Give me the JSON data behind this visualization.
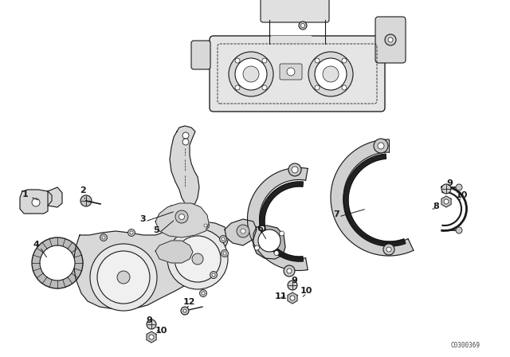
{
  "background_color": "#ffffff",
  "line_color": "#1a1a1a",
  "diagram_code": "C0300369",
  "fig_width": 6.4,
  "fig_height": 4.48,
  "dpi": 100,
  "labels": [
    [
      "1",
      28,
      247
    ],
    [
      "2",
      100,
      242
    ],
    [
      "3",
      175,
      278
    ],
    [
      "4",
      42,
      310
    ],
    [
      "5",
      192,
      292
    ],
    [
      "6",
      322,
      290
    ],
    [
      "7",
      418,
      272
    ],
    [
      "8",
      543,
      262
    ],
    [
      "9",
      560,
      233
    ],
    [
      "10",
      572,
      248
    ],
    [
      "9",
      365,
      355
    ],
    [
      "10",
      377,
      368
    ],
    [
      "9",
      183,
      405
    ],
    [
      "10",
      195,
      418
    ],
    [
      "11",
      345,
      375
    ],
    [
      "12",
      230,
      382
    ]
  ]
}
